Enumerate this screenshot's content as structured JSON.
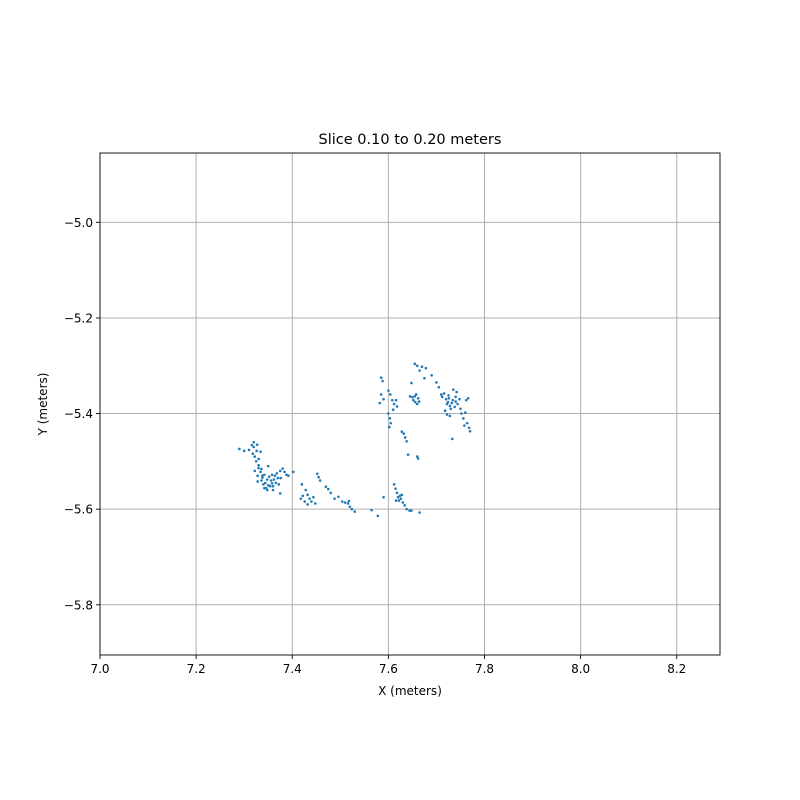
{
  "chart_data": {
    "type": "scatter",
    "title": "Slice 0.10 to 0.20 meters",
    "xlabel": "X (meters)",
    "ylabel": "Y (meters)",
    "xlim": [
      7.0,
      8.29
    ],
    "ylim": [
      -5.905,
      -4.855
    ],
    "grid": true,
    "point_color": "#1f77b4",
    "x_ticks": [
      {
        "value": 7.0,
        "label": "7.0"
      },
      {
        "value": 7.2,
        "label": "7.2"
      },
      {
        "value": 7.4,
        "label": "7.4"
      },
      {
        "value": 7.6,
        "label": "7.6"
      },
      {
        "value": 7.8,
        "label": "7.8"
      },
      {
        "value": 8.0,
        "label": "8.0"
      },
      {
        "value": 8.2,
        "label": "8.2"
      }
    ],
    "y_ticks": [
      {
        "value": -5.0,
        "label": "−5.0"
      },
      {
        "value": -5.2,
        "label": "−5.2"
      },
      {
        "value": -5.4,
        "label": "−5.4"
      },
      {
        "value": -5.6,
        "label": "−5.6"
      },
      {
        "value": -5.8,
        "label": "−5.8"
      }
    ],
    "points": [
      [
        7.29,
        -5.474
      ],
      [
        7.3,
        -5.478
      ],
      [
        7.31,
        -5.476
      ],
      [
        7.316,
        -5.466
      ],
      [
        7.32,
        -5.47
      ],
      [
        7.318,
        -5.484
      ],
      [
        7.322,
        -5.49
      ],
      [
        7.326,
        -5.478
      ],
      [
        7.33,
        -5.495
      ],
      [
        7.334,
        -5.48
      ],
      [
        7.325,
        -5.5
      ],
      [
        7.33,
        -5.508
      ],
      [
        7.322,
        -5.52
      ],
      [
        7.328,
        -5.53
      ],
      [
        7.334,
        -5.522
      ],
      [
        7.338,
        -5.534
      ],
      [
        7.342,
        -5.528
      ],
      [
        7.336,
        -5.54
      ],
      [
        7.344,
        -5.545
      ],
      [
        7.348,
        -5.538
      ],
      [
        7.352,
        -5.532
      ],
      [
        7.356,
        -5.54
      ],
      [
        7.35,
        -5.55
      ],
      [
        7.346,
        -5.556
      ],
      [
        7.354,
        -5.552
      ],
      [
        7.358,
        -5.546
      ],
      [
        7.362,
        -5.538
      ],
      [
        7.366,
        -5.545
      ],
      [
        7.36,
        -5.552
      ],
      [
        7.364,
        -5.53
      ],
      [
        7.37,
        -5.535
      ],
      [
        7.368,
        -5.525
      ],
      [
        7.358,
        -5.528
      ],
      [
        7.34,
        -5.548
      ],
      [
        7.342,
        -5.556
      ],
      [
        7.338,
        -5.53
      ],
      [
        7.375,
        -5.52
      ],
      [
        7.38,
        -5.515
      ],
      [
        7.384,
        -5.522
      ],
      [
        7.388,
        -5.528
      ],
      [
        7.392,
        -5.53
      ],
      [
        7.376,
        -5.535
      ],
      [
        7.372,
        -5.548
      ],
      [
        7.375,
        -5.567
      ],
      [
        7.33,
        -5.514
      ],
      [
        7.35,
        -5.51
      ],
      [
        7.336,
        -5.516
      ],
      [
        7.328,
        -5.542
      ],
      [
        7.36,
        -5.56
      ],
      [
        7.348,
        -5.56
      ],
      [
        7.32,
        -5.46
      ],
      [
        7.327,
        -5.465
      ],
      [
        7.402,
        -5.522
      ],
      [
        7.42,
        -5.548
      ],
      [
        7.428,
        -5.56
      ],
      [
        7.432,
        -5.57
      ],
      [
        7.436,
        -5.578
      ],
      [
        7.44,
        -5.584
      ],
      [
        7.444,
        -5.575
      ],
      [
        7.448,
        -5.588
      ],
      [
        7.426,
        -5.584
      ],
      [
        7.432,
        -5.59
      ],
      [
        7.418,
        -5.578
      ],
      [
        7.422,
        -5.572
      ],
      [
        7.452,
        -5.526
      ],
      [
        7.455,
        -5.533
      ],
      [
        7.458,
        -5.54
      ],
      [
        7.47,
        -5.553
      ],
      [
        7.475,
        -5.558
      ],
      [
        7.48,
        -5.566
      ],
      [
        7.488,
        -5.578
      ],
      [
        7.496,
        -5.574
      ],
      [
        7.504,
        -5.584
      ],
      [
        7.51,
        -5.586
      ],
      [
        7.516,
        -5.588
      ],
      [
        7.52,
        -5.595
      ],
      [
        7.524,
        -5.6
      ],
      [
        7.53,
        -5.605
      ],
      [
        7.518,
        -5.583
      ],
      [
        7.565,
        -5.602
      ],
      [
        7.578,
        -5.614
      ],
      [
        7.59,
        -5.575
      ],
      [
        7.612,
        -5.548
      ],
      [
        7.615,
        -5.557
      ],
      [
        7.618,
        -5.566
      ],
      [
        7.62,
        -5.575
      ],
      [
        7.622,
        -5.582
      ],
      [
        7.626,
        -5.578
      ],
      [
        7.63,
        -5.586
      ],
      [
        7.634,
        -5.592
      ],
      [
        7.616,
        -5.582
      ],
      [
        7.624,
        -5.572
      ],
      [
        7.628,
        -5.57
      ],
      [
        7.638,
        -5.6
      ],
      [
        7.644,
        -5.603
      ],
      [
        7.648,
        -5.603
      ],
      [
        7.665,
        -5.607
      ],
      [
        7.585,
        -5.325
      ],
      [
        7.588,
        -5.332
      ],
      [
        7.585,
        -5.36
      ],
      [
        7.59,
        -5.37
      ],
      [
        7.582,
        -5.378
      ],
      [
        7.6,
        -5.352
      ],
      [
        7.604,
        -5.36
      ],
      [
        7.608,
        -5.372
      ],
      [
        7.612,
        -5.38
      ],
      [
        7.616,
        -5.372
      ],
      [
        7.618,
        -5.385
      ],
      [
        7.61,
        -5.392
      ],
      [
        7.6,
        -5.4
      ],
      [
        7.603,
        -5.41
      ],
      [
        7.605,
        -5.42
      ],
      [
        7.602,
        -5.428
      ],
      [
        7.628,
        -5.438
      ],
      [
        7.632,
        -5.442
      ],
      [
        7.635,
        -5.45
      ],
      [
        7.638,
        -5.458
      ],
      [
        7.641,
        -5.486
      ],
      [
        7.66,
        -5.49
      ],
      [
        7.662,
        -5.494
      ],
      [
        7.648,
        -5.336
      ],
      [
        7.655,
        -5.296
      ],
      [
        7.66,
        -5.3
      ],
      [
        7.665,
        -5.31
      ],
      [
        7.67,
        -5.302
      ],
      [
        7.678,
        -5.305
      ],
      [
        7.675,
        -5.326
      ],
      [
        7.645,
        -5.364
      ],
      [
        7.65,
        -5.366
      ],
      [
        7.652,
        -5.372
      ],
      [
        7.656,
        -5.376
      ],
      [
        7.66,
        -5.38
      ],
      [
        7.664,
        -5.375
      ],
      [
        7.658,
        -5.36
      ],
      [
        7.662,
        -5.368
      ],
      [
        7.655,
        -5.364
      ],
      [
        7.69,
        -5.32
      ],
      [
        7.7,
        -5.335
      ],
      [
        7.705,
        -5.345
      ],
      [
        7.71,
        -5.36
      ],
      [
        7.712,
        -5.365
      ],
      [
        7.716,
        -5.358
      ],
      [
        7.72,
        -5.37
      ],
      [
        7.722,
        -5.38
      ],
      [
        7.724,
        -5.376
      ],
      [
        7.726,
        -5.368
      ],
      [
        7.728,
        -5.384
      ],
      [
        7.73,
        -5.39
      ],
      [
        7.732,
        -5.378
      ],
      [
        7.734,
        -5.372
      ],
      [
        7.738,
        -5.386
      ],
      [
        7.74,
        -5.375
      ],
      [
        7.744,
        -5.38
      ],
      [
        7.748,
        -5.37
      ],
      [
        7.742,
        -5.355
      ],
      [
        7.735,
        -5.35
      ],
      [
        7.75,
        -5.39
      ],
      [
        7.752,
        -5.4
      ],
      [
        7.756,
        -5.41
      ],
      [
        7.76,
        -5.398
      ],
      [
        7.762,
        -5.372
      ],
      [
        7.766,
        -5.368
      ],
      [
        7.764,
        -5.42
      ],
      [
        7.768,
        -5.43
      ],
      [
        7.77,
        -5.437
      ],
      [
        7.758,
        -5.425
      ],
      [
        7.733,
        -5.453
      ],
      [
        7.725,
        -5.362
      ],
      [
        7.718,
        -5.394
      ],
      [
        7.722,
        -5.402
      ],
      [
        7.728,
        -5.405
      ],
      [
        7.74,
        -5.365
      ]
    ]
  }
}
